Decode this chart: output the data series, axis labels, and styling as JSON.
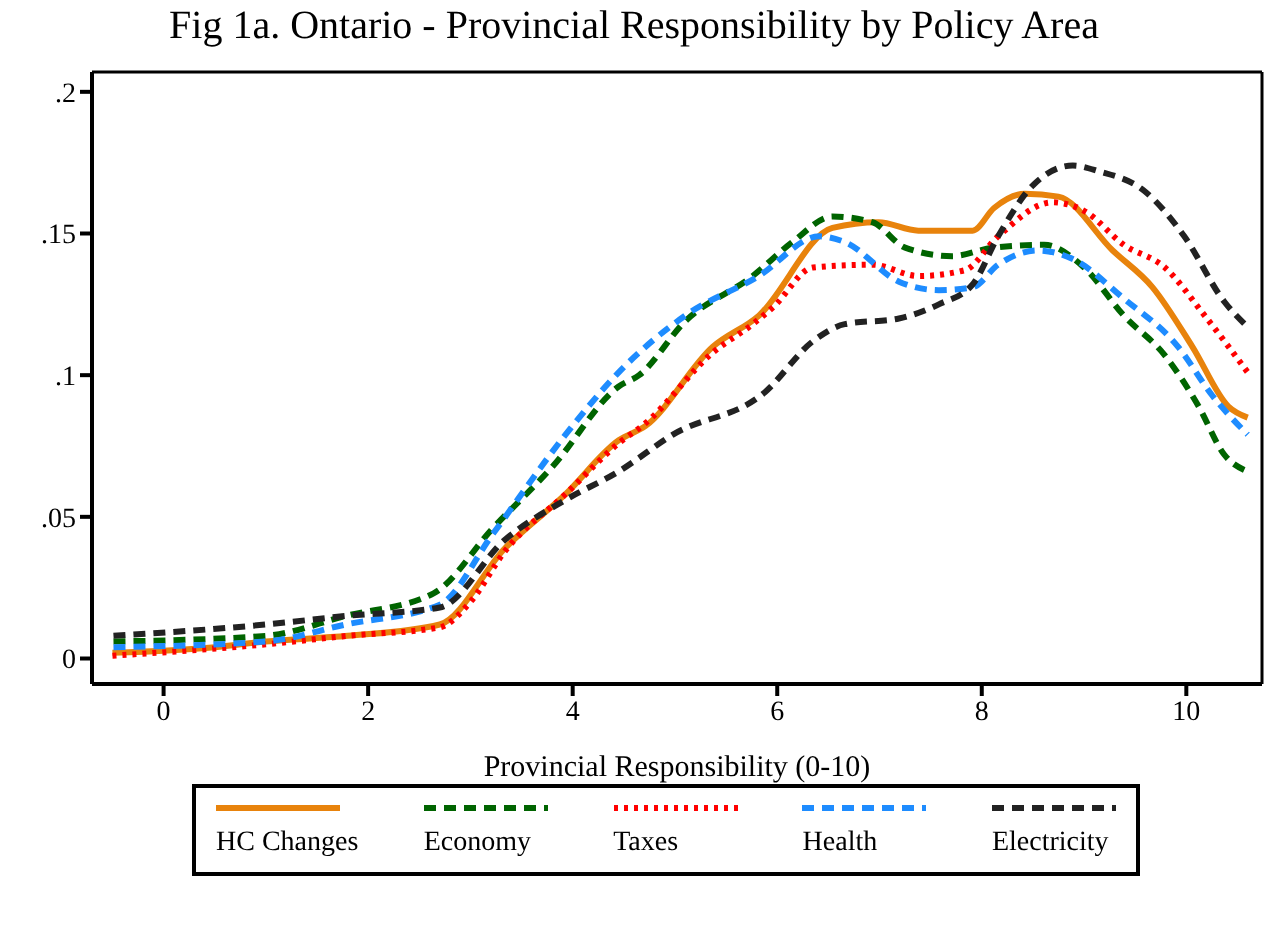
{
  "chart_data": {
    "type": "line",
    "title": "Fig 1a. Ontario - Provincial Responsibility by Policy Area",
    "xlabel": "Provincial Responsibility (0-10)",
    "xlim": [
      -0.7,
      10.74
    ],
    "xticks": [
      0,
      2,
      4,
      6,
      8,
      10
    ],
    "ylim": [
      -0.009,
      0.207
    ],
    "yticks": [
      {
        "value": 0,
        "label": "0"
      },
      {
        "value": 0.05,
        "label": ".05"
      },
      {
        "value": 0.1,
        "label": ".1"
      },
      {
        "value": 0.15,
        "label": ".15"
      },
      {
        "value": 0.2,
        "label": ".2"
      }
    ],
    "legend": "bottom",
    "marker": "none",
    "series": [
      {
        "name": "HC Changes",
        "color": "#e8830c",
        "line_style": "solid",
        "x": [
          -0.5,
          0.5,
          1,
          1.8,
          2.7,
          3.34,
          3.93,
          4.45,
          4.71,
          5.37,
          5.82,
          6.54,
          6.99,
          7.38,
          7.91,
          8.12,
          8.42,
          8.75,
          9.28,
          9.67,
          10.06,
          10.41,
          10.6
        ],
        "values": [
          0.002,
          0.004,
          0.006,
          0.008,
          0.012,
          0.039,
          0.058,
          0.077,
          0.082,
          0.11,
          0.121,
          0.152,
          0.154,
          0.151,
          0.151,
          0.159,
          0.164,
          0.163,
          0.144,
          0.131,
          0.11,
          0.089,
          0.085
        ]
      },
      {
        "name": "Economy",
        "color": "#006400",
        "line_style": "dashed",
        "x": [
          -0.49,
          1,
          1.78,
          2.64,
          3.22,
          3.81,
          4.45,
          4.65,
          5.1,
          5.76,
          6.15,
          6.54,
          6.93,
          7.25,
          7.71,
          8.11,
          8.61,
          9,
          9.39,
          9.79,
          10.12,
          10.37,
          10.6
        ],
        "values": [
          0.006,
          0.008,
          0.015,
          0.023,
          0.046,
          0.068,
          0.096,
          0.1,
          0.119,
          0.135,
          0.147,
          0.156,
          0.154,
          0.145,
          0.142,
          0.145,
          0.146,
          0.138,
          0.121,
          0.107,
          0.089,
          0.072,
          0.066
        ]
      },
      {
        "name": "Taxes",
        "color": "#ff0000",
        "line_style": "dotted",
        "x": [
          -0.5,
          1,
          1.8,
          2.7,
          3,
          3.34,
          3.93,
          4.45,
          4.71,
          5.37,
          5.76,
          5.96,
          6.35,
          6.93,
          7.38,
          7.83,
          8.16,
          8.69,
          9,
          9.39,
          9.79,
          10.18,
          10.6
        ],
        "values": [
          0.001,
          0.005,
          0.008,
          0.011,
          0.02,
          0.038,
          0.058,
          0.076,
          0.083,
          0.108,
          0.118,
          0.124,
          0.138,
          0.139,
          0.135,
          0.137,
          0.149,
          0.161,
          0.158,
          0.146,
          0.138,
          0.121,
          0.101
        ]
      },
      {
        "name": "Health",
        "color": "#1e8cff",
        "line_style": "dashed",
        "x": [
          -0.49,
          1,
          1.78,
          2.7,
          3.22,
          3.93,
          4.45,
          5.1,
          5.82,
          6.41,
          6.66,
          7.19,
          7.58,
          7.91,
          8.16,
          8.55,
          8.89,
          9.39,
          9.92,
          10.25,
          10.6
        ],
        "values": [
          0.004,
          0.006,
          0.012,
          0.019,
          0.044,
          0.079,
          0.101,
          0.121,
          0.135,
          0.149,
          0.147,
          0.133,
          0.13,
          0.131,
          0.139,
          0.144,
          0.141,
          0.127,
          0.11,
          0.093,
          0.079
        ]
      },
      {
        "name": "Electricity",
        "color": "#222222",
        "line_style": "dashed",
        "x": [
          -0.49,
          1,
          1.78,
          2.7,
          3.34,
          3.93,
          4.45,
          4.98,
          5.88,
          6.35,
          6.66,
          7.19,
          7.58,
          7.91,
          8.16,
          8.5,
          8.89,
          9.14,
          9.59,
          9.98,
          10.37,
          10.6
        ],
        "values": [
          0.008,
          0.012,
          0.015,
          0.018,
          0.042,
          0.056,
          0.066,
          0.079,
          0.094,
          0.112,
          0.118,
          0.12,
          0.125,
          0.132,
          0.149,
          0.167,
          0.174,
          0.172,
          0.165,
          0.149,
          0.126,
          0.117
        ]
      }
    ]
  }
}
